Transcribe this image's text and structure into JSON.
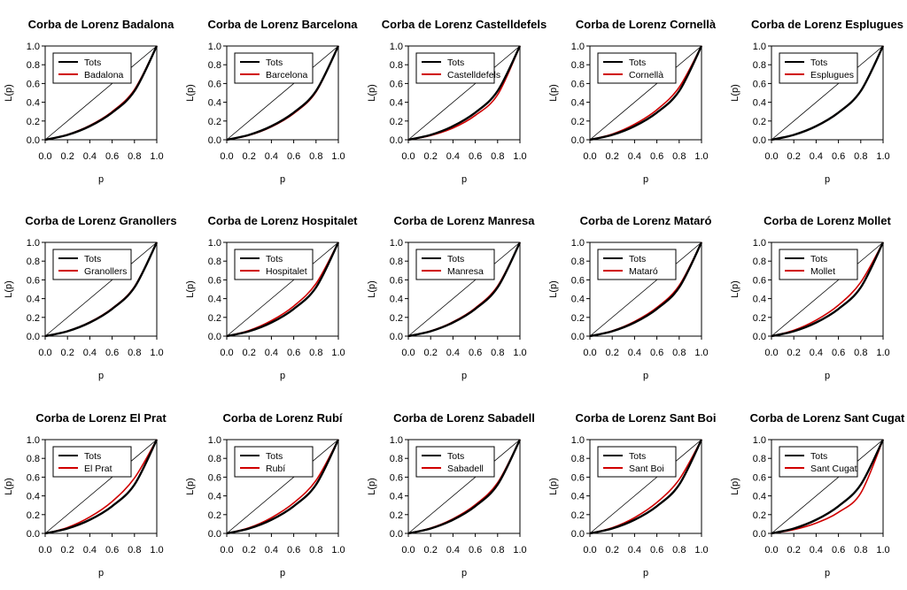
{
  "figure": {
    "background": "#ffffff",
    "reference_line_label": "Tots",
    "xlabel": "p",
    "ylabel": "L(p)"
  },
  "chart_data": [
    {
      "type": "line",
      "title": "Corba de Lorenz Badalona",
      "xlabel": "p",
      "ylabel": "L(p)",
      "xlim": [
        0,
        1
      ],
      "ylim": [
        0,
        1
      ],
      "xticks": [
        "0.0",
        "0.2",
        "0.4",
        "0.6",
        "0.8",
        "1.0"
      ],
      "yticks": [
        "0.0",
        "0.2",
        "0.4",
        "0.6",
        "0.8",
        "1.0"
      ],
      "legend_position": "top-left",
      "series": [
        {
          "name": "Tots",
          "color": "#000000",
          "x": [
            0,
            0.2,
            0.4,
            0.6,
            0.8,
            1
          ],
          "y": [
            0,
            0.052,
            0.145,
            0.29,
            0.52,
            1
          ]
        },
        {
          "name": "Badalona",
          "color": "#d00000",
          "x": [
            0,
            0.2,
            0.4,
            0.6,
            0.8,
            1
          ],
          "y": [
            0,
            0.055,
            0.152,
            0.3,
            0.535,
            1
          ]
        }
      ],
      "diagonal": true
    },
    {
      "type": "line",
      "title": "Corba de Lorenz Barcelona",
      "xlabel": "p",
      "ylabel": "L(p)",
      "xlim": [
        0,
        1
      ],
      "ylim": [
        0,
        1
      ],
      "xticks": [
        "0.0",
        "0.2",
        "0.4",
        "0.6",
        "0.8",
        "1.0"
      ],
      "yticks": [
        "0.0",
        "0.2",
        "0.4",
        "0.6",
        "0.8",
        "1.0"
      ],
      "legend_position": "top-left",
      "series": [
        {
          "name": "Tots",
          "color": "#000000",
          "x": [
            0,
            0.2,
            0.4,
            0.6,
            0.8,
            1
          ],
          "y": [
            0,
            0.052,
            0.145,
            0.29,
            0.52,
            1
          ]
        },
        {
          "name": "Barcelona",
          "color": "#d00000",
          "x": [
            0,
            0.2,
            0.4,
            0.6,
            0.8,
            1
          ],
          "y": [
            0,
            0.048,
            0.138,
            0.28,
            0.51,
            1
          ]
        }
      ],
      "diagonal": true
    },
    {
      "type": "line",
      "title": "Corba de Lorenz Castelldefels",
      "xlabel": "p",
      "ylabel": "L(p)",
      "xlim": [
        0,
        1
      ],
      "ylim": [
        0,
        1
      ],
      "xticks": [
        "0.0",
        "0.2",
        "0.4",
        "0.6",
        "0.8",
        "1.0"
      ],
      "yticks": [
        "0.0",
        "0.2",
        "0.4",
        "0.6",
        "0.8",
        "1.0"
      ],
      "legend_position": "top-left",
      "series": [
        {
          "name": "Tots",
          "color": "#000000",
          "x": [
            0,
            0.2,
            0.4,
            0.6,
            0.8,
            1
          ],
          "y": [
            0,
            0.052,
            0.145,
            0.29,
            0.52,
            1
          ]
        },
        {
          "name": "Castelldefels",
          "color": "#d00000",
          "x": [
            0,
            0.2,
            0.4,
            0.6,
            0.8,
            1
          ],
          "y": [
            0,
            0.045,
            0.125,
            0.26,
            0.48,
            1
          ]
        }
      ],
      "diagonal": true
    },
    {
      "type": "line",
      "title": "Corba de Lorenz Cornellà",
      "xlabel": "p",
      "ylabel": "L(p)",
      "xlim": [
        0,
        1
      ],
      "ylim": [
        0,
        1
      ],
      "xticks": [
        "0.0",
        "0.2",
        "0.4",
        "0.6",
        "0.8",
        "1.0"
      ],
      "yticks": [
        "0.0",
        "0.2",
        "0.4",
        "0.6",
        "0.8",
        "1.0"
      ],
      "legend_position": "top-left",
      "series": [
        {
          "name": "Tots",
          "color": "#000000",
          "x": [
            0,
            0.2,
            0.4,
            0.6,
            0.8,
            1
          ],
          "y": [
            0,
            0.052,
            0.145,
            0.29,
            0.52,
            1
          ]
        },
        {
          "name": "Cornellà",
          "color": "#d00000",
          "x": [
            0,
            0.2,
            0.4,
            0.6,
            0.8,
            1
          ],
          "y": [
            0,
            0.06,
            0.165,
            0.32,
            0.56,
            1
          ]
        }
      ],
      "diagonal": true
    },
    {
      "type": "line",
      "title": "Corba de Lorenz Esplugues",
      "xlabel": "p",
      "ylabel": "L(p)",
      "xlim": [
        0,
        1
      ],
      "ylim": [
        0,
        1
      ],
      "xticks": [
        "0.0",
        "0.2",
        "0.4",
        "0.6",
        "0.8",
        "1.0"
      ],
      "yticks": [
        "0.0",
        "0.2",
        "0.4",
        "0.6",
        "0.8",
        "1.0"
      ],
      "legend_position": "top-left",
      "series": [
        {
          "name": "Tots",
          "color": "#000000",
          "x": [
            0,
            0.2,
            0.4,
            0.6,
            0.8,
            1
          ],
          "y": [
            0,
            0.052,
            0.145,
            0.29,
            0.52,
            1
          ]
        },
        {
          "name": "Esplugues",
          "color": "#d00000",
          "x": [
            0,
            0.2,
            0.4,
            0.6,
            0.8,
            1
          ],
          "y": [
            0,
            0.053,
            0.147,
            0.292,
            0.522,
            1
          ]
        }
      ],
      "diagonal": true
    },
    {
      "type": "line",
      "title": "Corba de Lorenz Granollers",
      "xlabel": "p",
      "ylabel": "L(p)",
      "xlim": [
        0,
        1
      ],
      "ylim": [
        0,
        1
      ],
      "xticks": [
        "0.0",
        "0.2",
        "0.4",
        "0.6",
        "0.8",
        "1.0"
      ],
      "yticks": [
        "0.0",
        "0.2",
        "0.4",
        "0.6",
        "0.8",
        "1.0"
      ],
      "legend_position": "top-left",
      "series": [
        {
          "name": "Tots",
          "color": "#000000",
          "x": [
            0,
            0.2,
            0.4,
            0.6,
            0.8,
            1
          ],
          "y": [
            0,
            0.052,
            0.145,
            0.29,
            0.52,
            1
          ]
        },
        {
          "name": "Granollers",
          "color": "#d00000",
          "x": [
            0,
            0.2,
            0.4,
            0.6,
            0.8,
            1
          ],
          "y": [
            0,
            0.054,
            0.15,
            0.296,
            0.528,
            1
          ]
        }
      ],
      "diagonal": true
    },
    {
      "type": "line",
      "title": "Corba de Lorenz Hospitalet",
      "xlabel": "p",
      "ylabel": "L(p)",
      "xlim": [
        0,
        1
      ],
      "ylim": [
        0,
        1
      ],
      "xticks": [
        "0.0",
        "0.2",
        "0.4",
        "0.6",
        "0.8",
        "1.0"
      ],
      "yticks": [
        "0.0",
        "0.2",
        "0.4",
        "0.6",
        "0.8",
        "1.0"
      ],
      "legend_position": "top-left",
      "series": [
        {
          "name": "Tots",
          "color": "#000000",
          "x": [
            0,
            0.2,
            0.4,
            0.6,
            0.8,
            1
          ],
          "y": [
            0,
            0.052,
            0.145,
            0.29,
            0.52,
            1
          ]
        },
        {
          "name": "Hospitalet",
          "color": "#d00000",
          "x": [
            0,
            0.2,
            0.4,
            0.6,
            0.8,
            1
          ],
          "y": [
            0,
            0.06,
            0.165,
            0.32,
            0.56,
            1
          ]
        }
      ],
      "diagonal": true
    },
    {
      "type": "line",
      "title": "Corba de Lorenz Manresa",
      "xlabel": "p",
      "ylabel": "L(p)",
      "xlim": [
        0,
        1
      ],
      "ylim": [
        0,
        1
      ],
      "xticks": [
        "0.0",
        "0.2",
        "0.4",
        "0.6",
        "0.8",
        "1.0"
      ],
      "yticks": [
        "0.0",
        "0.2",
        "0.4",
        "0.6",
        "0.8",
        "1.0"
      ],
      "legend_position": "top-left",
      "series": [
        {
          "name": "Tots",
          "color": "#000000",
          "x": [
            0,
            0.2,
            0.4,
            0.6,
            0.8,
            1
          ],
          "y": [
            0,
            0.052,
            0.145,
            0.29,
            0.52,
            1
          ]
        },
        {
          "name": "Manresa",
          "color": "#d00000",
          "x": [
            0,
            0.2,
            0.4,
            0.6,
            0.8,
            1
          ],
          "y": [
            0,
            0.055,
            0.152,
            0.3,
            0.535,
            1
          ]
        }
      ],
      "diagonal": true
    },
    {
      "type": "line",
      "title": "Corba de Lorenz Mataró",
      "xlabel": "p",
      "ylabel": "L(p)",
      "xlim": [
        0,
        1
      ],
      "ylim": [
        0,
        1
      ],
      "xticks": [
        "0.0",
        "0.2",
        "0.4",
        "0.6",
        "0.8",
        "1.0"
      ],
      "yticks": [
        "0.0",
        "0.2",
        "0.4",
        "0.6",
        "0.8",
        "1.0"
      ],
      "legend_position": "top-left",
      "series": [
        {
          "name": "Tots",
          "color": "#000000",
          "x": [
            0,
            0.2,
            0.4,
            0.6,
            0.8,
            1
          ],
          "y": [
            0,
            0.052,
            0.145,
            0.29,
            0.52,
            1
          ]
        },
        {
          "name": "Mataró",
          "color": "#d00000",
          "x": [
            0,
            0.2,
            0.4,
            0.6,
            0.8,
            1
          ],
          "y": [
            0,
            0.056,
            0.156,
            0.305,
            0.54,
            1
          ]
        }
      ],
      "diagonal": true
    },
    {
      "type": "line",
      "title": "Corba de Lorenz Mollet",
      "xlabel": "p",
      "ylabel": "L(p)",
      "xlim": [
        0,
        1
      ],
      "ylim": [
        0,
        1
      ],
      "xticks": [
        "0.0",
        "0.2",
        "0.4",
        "0.6",
        "0.8",
        "1.0"
      ],
      "yticks": [
        "0.0",
        "0.2",
        "0.4",
        "0.6",
        "0.8",
        "1.0"
      ],
      "legend_position": "top-left",
      "series": [
        {
          "name": "Tots",
          "color": "#000000",
          "x": [
            0,
            0.2,
            0.4,
            0.6,
            0.8,
            1
          ],
          "y": [
            0,
            0.052,
            0.145,
            0.29,
            0.52,
            1
          ]
        },
        {
          "name": "Mollet",
          "color": "#d00000",
          "x": [
            0,
            0.2,
            0.4,
            0.6,
            0.8,
            1
          ],
          "y": [
            0,
            0.062,
            0.17,
            0.33,
            0.575,
            1
          ]
        }
      ],
      "diagonal": true
    },
    {
      "type": "line",
      "title": "Corba de Lorenz El Prat",
      "xlabel": "p",
      "ylabel": "L(p)",
      "xlim": [
        0,
        1
      ],
      "ylim": [
        0,
        1
      ],
      "xticks": [
        "0.0",
        "0.2",
        "0.4",
        "0.6",
        "0.8",
        "1.0"
      ],
      "yticks": [
        "0.0",
        "0.2",
        "0.4",
        "0.6",
        "0.8",
        "1.0"
      ],
      "legend_position": "top-left",
      "series": [
        {
          "name": "Tots",
          "color": "#000000",
          "x": [
            0,
            0.2,
            0.4,
            0.6,
            0.8,
            1
          ],
          "y": [
            0,
            0.052,
            0.145,
            0.29,
            0.52,
            1
          ]
        },
        {
          "name": "El Prat",
          "color": "#d00000",
          "x": [
            0,
            0.2,
            0.4,
            0.6,
            0.8,
            1
          ],
          "y": [
            0,
            0.063,
            0.175,
            0.34,
            0.59,
            1
          ]
        }
      ],
      "diagonal": true
    },
    {
      "type": "line",
      "title": "Corba de Lorenz Rubí",
      "xlabel": "p",
      "ylabel": "L(p)",
      "xlim": [
        0,
        1
      ],
      "ylim": [
        0,
        1
      ],
      "xticks": [
        "0.0",
        "0.2",
        "0.4",
        "0.6",
        "0.8",
        "1.0"
      ],
      "yticks": [
        "0.0",
        "0.2",
        "0.4",
        "0.6",
        "0.8",
        "1.0"
      ],
      "legend_position": "top-left",
      "series": [
        {
          "name": "Tots",
          "color": "#000000",
          "x": [
            0,
            0.2,
            0.4,
            0.6,
            0.8,
            1
          ],
          "y": [
            0,
            0.052,
            0.145,
            0.29,
            0.52,
            1
          ]
        },
        {
          "name": "Rubí",
          "color": "#d00000",
          "x": [
            0,
            0.2,
            0.4,
            0.6,
            0.8,
            1
          ],
          "y": [
            0,
            0.06,
            0.167,
            0.325,
            0.565,
            1
          ]
        }
      ],
      "diagonal": true
    },
    {
      "type": "line",
      "title": "Corba de Lorenz Sabadell",
      "xlabel": "p",
      "ylabel": "L(p)",
      "xlim": [
        0,
        1
      ],
      "ylim": [
        0,
        1
      ],
      "xticks": [
        "0.0",
        "0.2",
        "0.4",
        "0.6",
        "0.8",
        "1.0"
      ],
      "yticks": [
        "0.0",
        "0.2",
        "0.4",
        "0.6",
        "0.8",
        "1.0"
      ],
      "legend_position": "top-left",
      "series": [
        {
          "name": "Tots",
          "color": "#000000",
          "x": [
            0,
            0.2,
            0.4,
            0.6,
            0.8,
            1
          ],
          "y": [
            0,
            0.052,
            0.145,
            0.29,
            0.52,
            1
          ]
        },
        {
          "name": "Sabadell",
          "color": "#d00000",
          "x": [
            0,
            0.2,
            0.4,
            0.6,
            0.8,
            1
          ],
          "y": [
            0,
            0.056,
            0.155,
            0.305,
            0.54,
            1
          ]
        }
      ],
      "diagonal": true
    },
    {
      "type": "line",
      "title": "Corba de Lorenz Sant Boi",
      "xlabel": "p",
      "ylabel": "L(p)",
      "xlim": [
        0,
        1
      ],
      "ylim": [
        0,
        1
      ],
      "xticks": [
        "0.0",
        "0.2",
        "0.4",
        "0.6",
        "0.8",
        "1.0"
      ],
      "yticks": [
        "0.0",
        "0.2",
        "0.4",
        "0.6",
        "0.8",
        "1.0"
      ],
      "legend_position": "top-left",
      "series": [
        {
          "name": "Tots",
          "color": "#000000",
          "x": [
            0,
            0.2,
            0.4,
            0.6,
            0.8,
            1
          ],
          "y": [
            0,
            0.052,
            0.145,
            0.29,
            0.52,
            1
          ]
        },
        {
          "name": "Sant Boi",
          "color": "#d00000",
          "x": [
            0,
            0.2,
            0.4,
            0.6,
            0.8,
            1
          ],
          "y": [
            0,
            0.06,
            0.168,
            0.33,
            0.575,
            1
          ]
        }
      ],
      "diagonal": true
    },
    {
      "type": "line",
      "title": "Corba de Lorenz Sant Cugat",
      "xlabel": "p",
      "ylabel": "L(p)",
      "xlim": [
        0,
        1
      ],
      "ylim": [
        0,
        1
      ],
      "xticks": [
        "0.0",
        "0.2",
        "0.4",
        "0.6",
        "0.8",
        "1.0"
      ],
      "yticks": [
        "0.0",
        "0.2",
        "0.4",
        "0.6",
        "0.8",
        "1.0"
      ],
      "legend_position": "top-left",
      "series": [
        {
          "name": "Tots",
          "color": "#000000",
          "x": [
            0,
            0.2,
            0.4,
            0.6,
            0.8,
            1
          ],
          "y": [
            0,
            0.052,
            0.145,
            0.29,
            0.52,
            1
          ]
        },
        {
          "name": "Sant Cugat",
          "color": "#d00000",
          "x": [
            0,
            0.2,
            0.4,
            0.6,
            0.8,
            1
          ],
          "y": [
            0,
            0.04,
            0.11,
            0.225,
            0.43,
            1
          ]
        }
      ],
      "diagonal": true
    }
  ]
}
